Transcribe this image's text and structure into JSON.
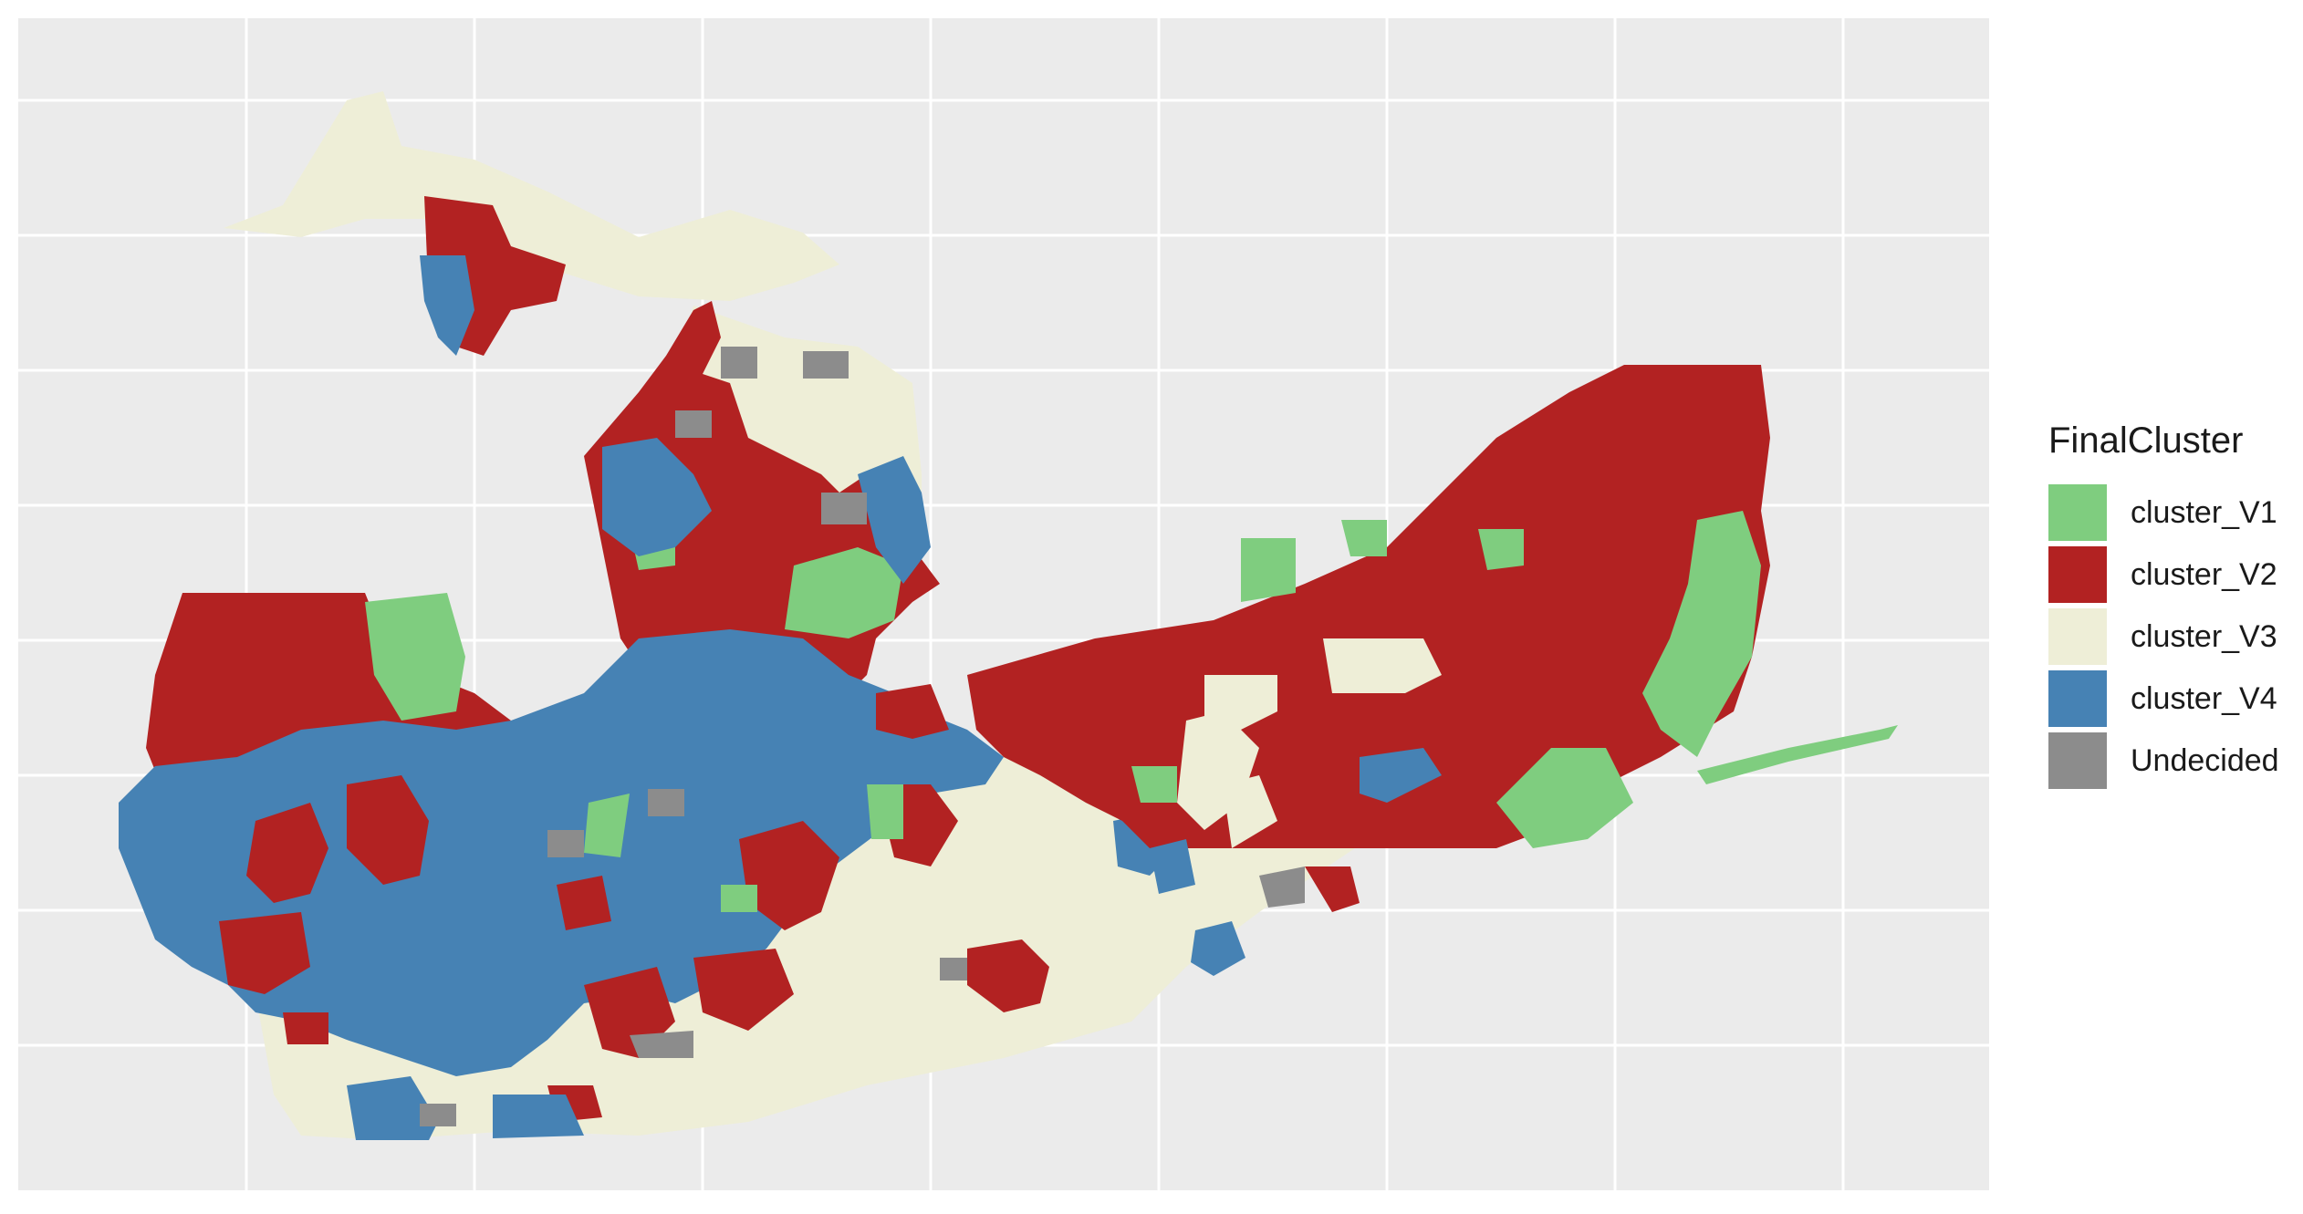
{
  "legend": {
    "title": "FinalCluster",
    "items": [
      {
        "label": "cluster_V1",
        "color": "#7fcd7f"
      },
      {
        "label": "cluster_V2",
        "color": "#b22222"
      },
      {
        "label": "cluster_V3",
        "color": "#eeeed7"
      },
      {
        "label": "cluster_V4",
        "color": "#4682b4"
      },
      {
        "label": "Undecided",
        "color": "#8c8c8c"
      }
    ]
  },
  "map": {
    "panel_background": "#ebebeb",
    "grid_color": "#ffffff",
    "grid_on": true,
    "axis_labels_shown": false
  }
}
